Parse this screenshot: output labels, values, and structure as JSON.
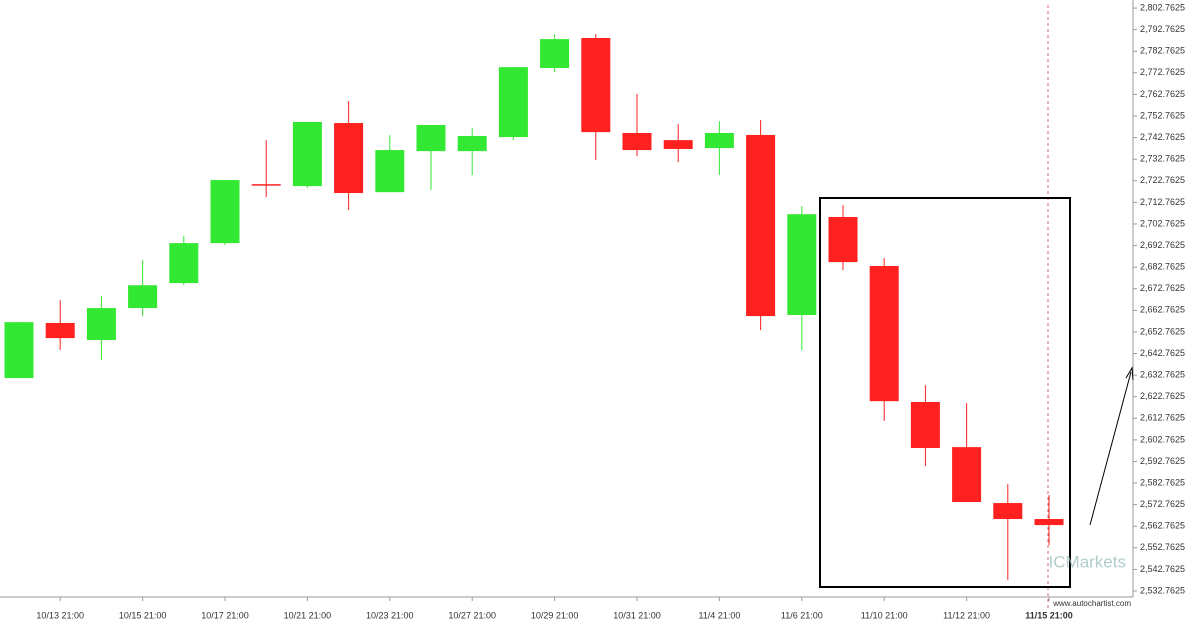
{
  "chart_data": {
    "type": "candlestick",
    "categories": [
      null,
      "10/13 21:00",
      null,
      "10/15 21:00",
      null,
      "10/17 21:00",
      null,
      "10/21 21:00",
      null,
      "10/23 21:00",
      null,
      "10/27 21:00",
      null,
      "10/29 21:00",
      null,
      "10/31 21:00",
      null,
      "11/4 21:00",
      null,
      "11/6 21:00",
      null,
      "11/10 21:00",
      null,
      "11/12 21:00",
      null,
      "11/15 21:00"
    ],
    "open": [
      2631.4,
      2656.9,
      2649.0,
      2663.8,
      2675.4,
      2693.9,
      2721.2,
      2720.3,
      2749.5,
      2717.5,
      2736.5,
      2736.5,
      2743.0,
      2775.0,
      2788.9,
      2744.9,
      2741.6,
      2737.9,
      2744.0,
      2660.6,
      2706.0,
      2683.3,
      2620.3,
      2599.4,
      2573.5,
      2566.1
    ],
    "high": [
      2657.3,
      2667.5,
      2669.4,
      2686.0,
      2697.2,
      2723.1,
      2741.6,
      2750.0,
      2759.7,
      2743.9,
      2748.6,
      2747.2,
      2775.4,
      2790.7,
      2790.7,
      2763.0,
      2749.0,
      2750.4,
      2750.9,
      2711.0,
      2711.5,
      2687.0,
      2628.1,
      2619.8,
      2582.3,
      2577.2
    ],
    "low": [
      2631.4,
      2644.4,
      2639.7,
      2660.1,
      2674.4,
      2693.0,
      2715.2,
      2719.4,
      2709.2,
      2717.5,
      2718.5,
      2725.4,
      2741.6,
      2773.1,
      2732.4,
      2734.2,
      2731.4,
      2725.4,
      2653.6,
      2644.4,
      2681.4,
      2611.5,
      2590.6,
      2574.0,
      2537.8,
      2554.0
    ],
    "close": [
      2657.3,
      2649.9,
      2663.8,
      2674.4,
      2693.9,
      2723.1,
      2720.8,
      2750.0,
      2717.1,
      2737.0,
      2748.6,
      2743.5,
      2775.4,
      2788.4,
      2745.3,
      2737.0,
      2737.5,
      2744.9,
      2660.1,
      2707.3,
      2685.1,
      2620.7,
      2599.0,
      2574.0,
      2566.1,
      2563.3
    ],
    "up_color": "#33e833",
    "down_color": "#ff2020",
    "ylim": [
      2528.6,
      2806.5
    ],
    "yticks": [
      {
        "value": 2532.7625,
        "label": "2,532.7625"
      },
      {
        "value": 2542.7625,
        "label": "2,542.7625"
      },
      {
        "value": 2552.7625,
        "label": "2,552.7625"
      },
      {
        "value": 2562.7625,
        "label": "2,562.7625"
      },
      {
        "value": 2572.7625,
        "label": "2,572.7625"
      },
      {
        "value": 2582.7625,
        "label": "2,582.7625"
      },
      {
        "value": 2592.7625,
        "label": "2,592.7625"
      },
      {
        "value": 2602.7625,
        "label": "2,602.7625"
      },
      {
        "value": 2612.7625,
        "label": "2,612.7625"
      },
      {
        "value": 2622.7625,
        "label": "2,622.7625"
      },
      {
        "value": 2632.7625,
        "label": "2,632.7625"
      },
      {
        "value": 2642.7625,
        "label": "2,642.7625"
      },
      {
        "value": 2652.7625,
        "label": "2,652.7625"
      },
      {
        "value": 2662.7625,
        "label": "2,662.7625"
      },
      {
        "value": 2672.7625,
        "label": "2,672.7625"
      },
      {
        "value": 2682.7625,
        "label": "2,682.7625"
      },
      {
        "value": 2692.7625,
        "label": "2,692.7625"
      },
      {
        "value": 2702.7625,
        "label": "2,702.7625"
      },
      {
        "value": 2712.7625,
        "label": "2,712.7625"
      },
      {
        "value": 2722.7625,
        "label": "2,722.7625"
      },
      {
        "value": 2732.7625,
        "label": "2,732.7625"
      },
      {
        "value": 2742.7625,
        "label": "2,742.7625"
      },
      {
        "value": 2752.7625,
        "label": "2,752.7625"
      },
      {
        "value": 2762.7625,
        "label": "2,762.7625"
      },
      {
        "value": 2772.7625,
        "label": "2,772.7625"
      },
      {
        "value": 2782.7625,
        "label": "2,782.7625"
      },
      {
        "value": 2792.7625,
        "label": "2,792.7625"
      },
      {
        "value": 2802.7625,
        "label": "2,802.7625"
      }
    ],
    "grid": false,
    "watermark": "ICMarkets",
    "source": "www.autochartist.com"
  }
}
